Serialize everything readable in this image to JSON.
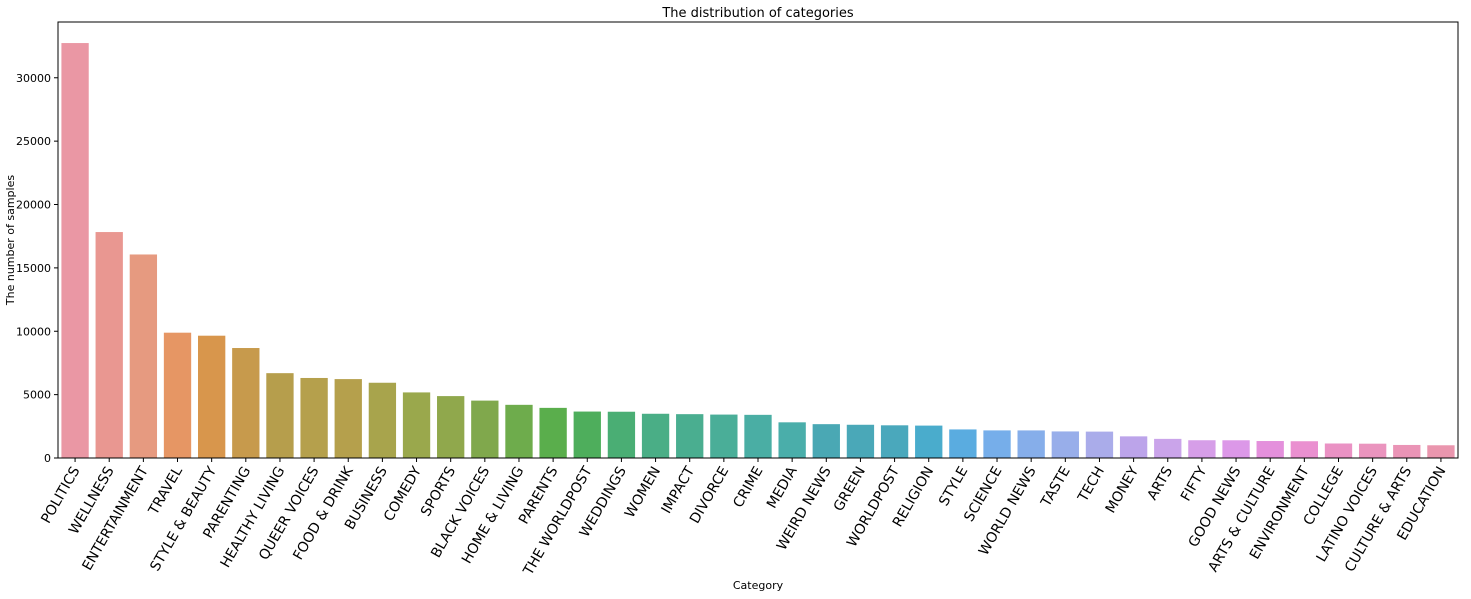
{
  "chart_data": {
    "type": "bar",
    "title": "The distribution of categories",
    "xlabel": "Category",
    "ylabel": "The number of samples",
    "ylim": [
      0,
      34400
    ],
    "yticks": [
      0,
      5000,
      10000,
      15000,
      20000,
      25000,
      30000
    ],
    "grid": false,
    "legend": "none",
    "categories": [
      "POLITICS",
      "WELLNESS",
      "ENTERTAINMENT",
      "TRAVEL",
      "STYLE & BEAUTY",
      "PARENTING",
      "HEALTHY LIVING",
      "QUEER VOICES",
      "FOOD & DRINK",
      "BUSINESS",
      "COMEDY",
      "SPORTS",
      "BLACK VOICES",
      "HOME & LIVING",
      "PARENTS",
      "THE WORLDPOST",
      "WEDDINGS",
      "WOMEN",
      "IMPACT",
      "DIVORCE",
      "CRIME",
      "MEDIA",
      "WEIRD NEWS",
      "GREEN",
      "WORLDPOST",
      "RELIGION",
      "STYLE",
      "SCIENCE",
      "WORLD NEWS",
      "TASTE",
      "TECH",
      "MONEY",
      "ARTS",
      "FIFTY",
      "GOOD NEWS",
      "ARTS & CULTURE",
      "ENVIRONMENT",
      "COLLEGE",
      "LATINO VOICES",
      "CULTURE & ARTS",
      "EDUCATION"
    ],
    "values": [
      32739,
      17827,
      16058,
      9887,
      9649,
      8677,
      6694,
      6314,
      6226,
      5937,
      5175,
      4884,
      4528,
      4195,
      3955,
      3664,
      3651,
      3490,
      3459,
      3426,
      3405,
      2815,
      2670,
      2622,
      2579,
      2556,
      2254,
      2178,
      2177,
      2096,
      2082,
      1707,
      1509,
      1401,
      1398,
      1339,
      1323,
      1144,
      1129,
      1030,
      1004
    ],
    "colors": [
      "#ea97a4",
      "#e99791",
      "#e69a80",
      "#e69664",
      "#d8964c",
      "#c79a4c",
      "#b69e4c",
      "#b5a04c",
      "#b5a04c",
      "#a8a44c",
      "#9aa84c",
      "#90a84c",
      "#80a84c",
      "#6eac4c",
      "#5aae4c",
      "#4eae5c",
      "#4aae74",
      "#4aae86",
      "#4aae90",
      "#4aae98",
      "#4aaea4",
      "#4aaeaa",
      "#4aa8b4",
      "#4aa8b8",
      "#4aa8bc",
      "#4aaccc",
      "#5aace0",
      "#76aeea",
      "#86aeea",
      "#98aeea",
      "#aaacea",
      "#bca4ea",
      "#caa4ea",
      "#d69ee8",
      "#dc98e8",
      "#e490dc",
      "#ea90d0",
      "#ea92c4",
      "#ea94be",
      "#ea94b6",
      "#ea96ae"
    ]
  }
}
